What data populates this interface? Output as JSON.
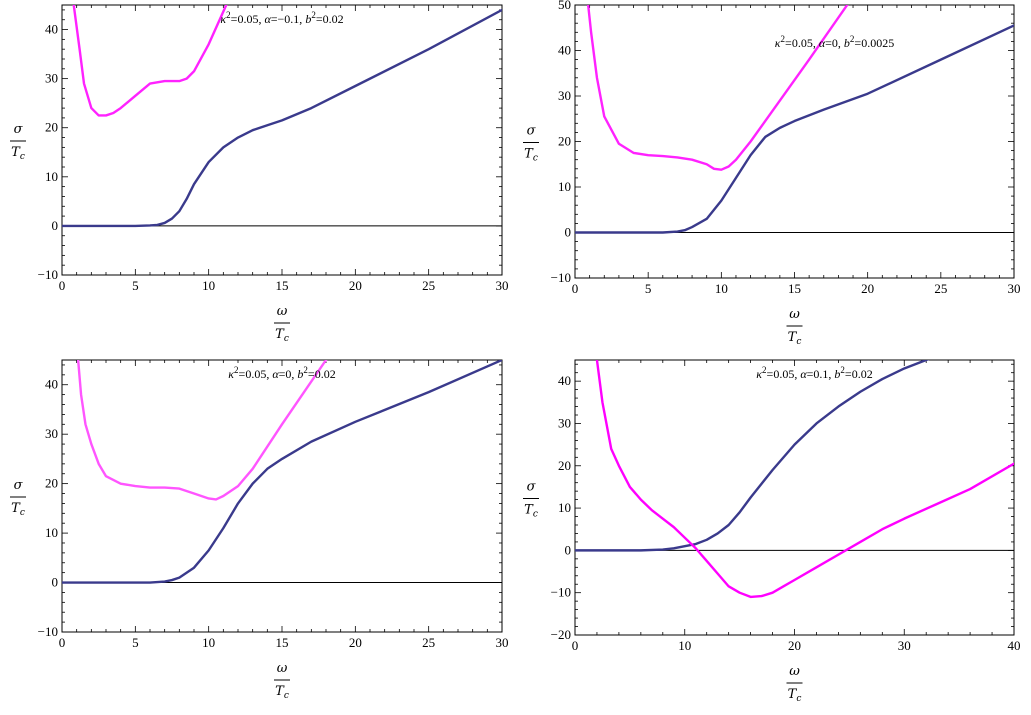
{
  "chart_data": [
    {
      "type": "line",
      "annotation": {
        "kappa2": "0.05",
        "alpha": "−0.1",
        "b2": "0.02"
      },
      "xlabel": {
        "num": "ω",
        "den_main": "T",
        "den_sub": "c"
      },
      "ylabel": {
        "num": "σ",
        "den_main": "T",
        "den_sub": "c"
      },
      "xlim": [
        0,
        30
      ],
      "ylim": [
        -10,
        45
      ],
      "xticks": [
        0,
        5,
        10,
        15,
        20,
        25,
        30
      ],
      "yticks": [
        -10,
        0,
        10,
        20,
        30,
        40
      ],
      "series": [
        {
          "color": "#3a3a8c",
          "x": [
            0,
            2,
            4,
            5,
            6,
            6.5,
            7,
            7.5,
            8,
            8.5,
            9,
            10,
            11,
            12,
            13,
            14,
            15,
            17,
            20,
            25,
            30
          ],
          "y": [
            0,
            0,
            0,
            0,
            0.1,
            0.2,
            0.6,
            1.5,
            3,
            5.5,
            8.5,
            13,
            16,
            18,
            19.5,
            20.5,
            21.5,
            24,
            28.5,
            36,
            44
          ]
        },
        {
          "color": "#ff22ff",
          "x": [
            0.8,
            1.2,
            1.5,
            2,
            2.5,
            3,
            3.5,
            4,
            5,
            6,
            7,
            8,
            8.5,
            9,
            10,
            11.2
          ],
          "y": [
            45,
            36,
            29,
            24,
            22.5,
            22.5,
            23,
            24,
            26.5,
            29,
            29.5,
            29.5,
            30,
            31.5,
            37,
            45
          ]
        }
      ]
    },
    {
      "type": "line",
      "annotation": {
        "kappa2": "0.05",
        "alpha": "0",
        "b2": "0.0025"
      },
      "xlabel": {
        "num": "ω",
        "den_main": "T",
        "den_sub": "c"
      },
      "ylabel": {
        "num": "σ",
        "den_main": "T",
        "den_sub": "c"
      },
      "xlim": [
        0,
        30
      ],
      "ylim": [
        -10,
        50
      ],
      "xticks": [
        0,
        5,
        10,
        15,
        20,
        25,
        30
      ],
      "yticks": [
        -10,
        0,
        10,
        20,
        30,
        40,
        50
      ],
      "series": [
        {
          "color": "#3a3a8c",
          "x": [
            0,
            2,
            4,
            5,
            6,
            7,
            7.5,
            8,
            9,
            10,
            11,
            12,
            13,
            14,
            15,
            17,
            20,
            25,
            30
          ],
          "y": [
            0,
            0,
            0,
            0,
            0,
            0.2,
            0.5,
            1.2,
            3,
            7,
            12,
            17,
            21,
            23,
            24.5,
            27,
            30.5,
            38,
            45.5
          ]
        },
        {
          "color": "#ff22ff",
          "x": [
            0.9,
            1.1,
            1.5,
            2,
            3,
            4,
            5,
            6,
            7,
            8,
            9,
            9.5,
            10,
            10.5,
            11,
            12,
            14,
            16,
            18.6
          ],
          "y": [
            50,
            44,
            34,
            25.5,
            19.5,
            17.5,
            17,
            16.8,
            16.5,
            16,
            15,
            14,
            13.8,
            14.5,
            16,
            20,
            29,
            38,
            50
          ]
        }
      ]
    },
    {
      "type": "line",
      "annotation": {
        "kappa2": "0.05",
        "alpha": "0",
        "b2": "0.02"
      },
      "xlabel": {
        "num": "ω",
        "den_main": "T",
        "den_sub": "c"
      },
      "ylabel": {
        "num": "σ",
        "den_main": "T",
        "den_sub": "c"
      },
      "xlim": [
        0,
        30
      ],
      "ylim": [
        -10,
        45
      ],
      "xticks": [
        0,
        5,
        10,
        15,
        20,
        25,
        30
      ],
      "yticks": [
        -10,
        0,
        10,
        20,
        30,
        40
      ],
      "series": [
        {
          "color": "#3a3a8c",
          "x": [
            0,
            2,
            4,
            6,
            7,
            7.5,
            8,
            9,
            10,
            11,
            12,
            13,
            14,
            15,
            17,
            20,
            25,
            30
          ],
          "y": [
            0,
            0,
            0,
            0,
            0.2,
            0.5,
            1,
            3,
            6.5,
            11,
            16,
            20,
            23,
            25,
            28.5,
            32.5,
            38.5,
            45
          ]
        },
        {
          "color": "#ff55ff",
          "x": [
            1.1,
            1.3,
            1.6,
            2,
            2.5,
            3,
            4,
            5,
            6,
            7,
            8,
            9,
            9.5,
            10,
            10.5,
            11,
            12,
            13,
            15,
            18
          ],
          "y": [
            45,
            38,
            32,
            28,
            24,
            21.5,
            20,
            19.5,
            19.2,
            19.2,
            19,
            18,
            17.5,
            17,
            16.8,
            17.5,
            19.5,
            23,
            32,
            45
          ]
        }
      ]
    },
    {
      "type": "line",
      "annotation": {
        "kappa2": "0.05",
        "alpha": "0.1",
        "b2": "0.02"
      },
      "xlabel": {
        "num": "ω",
        "den_main": "T",
        "den_sub": "c"
      },
      "ylabel": {
        "num": "σ",
        "den_main": "T",
        "den_sub": "c"
      },
      "xlim": [
        0,
        40
      ],
      "ylim": [
        -20,
        45
      ],
      "xticks": [
        0,
        10,
        20,
        30,
        40
      ],
      "yticks": [
        -20,
        -10,
        0,
        10,
        20,
        30,
        40
      ],
      "series": [
        {
          "color": "#3a3a8c",
          "x": [
            0,
            3,
            6,
            8,
            9,
            10,
            11,
            12,
            13,
            14,
            15,
            16,
            18,
            20,
            22,
            24,
            26,
            28,
            30,
            33
          ],
          "y": [
            0,
            0,
            0,
            0.2,
            0.5,
            1,
            1.5,
            2.5,
            4,
            6,
            9,
            12.5,
            19,
            25,
            30,
            34,
            37.5,
            40.5,
            43,
            46
          ]
        },
        {
          "color": "#ff00ff",
          "x": [
            2,
            2.5,
            3.3,
            4,
            5,
            6,
            7,
            8,
            9,
            10,
            11,
            12,
            13,
            14,
            15,
            16,
            17,
            18,
            19,
            20,
            22,
            24,
            26,
            28,
            30,
            33,
            36,
            40
          ],
          "y": [
            45,
            35,
            24,
            20,
            15,
            12,
            9.5,
            7.5,
            5.5,
            3,
            0.5,
            -2.5,
            -5.5,
            -8.5,
            -10,
            -11,
            -10.8,
            -10,
            -8.5,
            -7,
            -4,
            -1,
            2,
            5,
            7.5,
            11,
            14.5,
            20.5
          ]
        }
      ]
    }
  ]
}
